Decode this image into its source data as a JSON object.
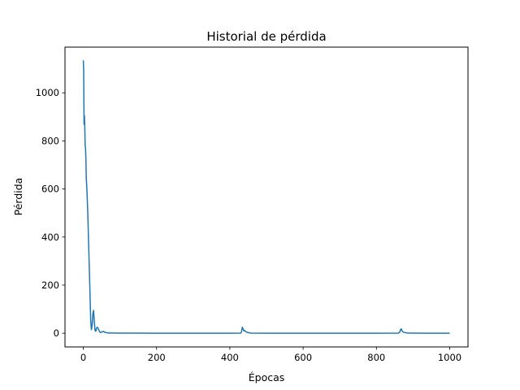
{
  "chart_data": {
    "type": "line",
    "title": "Historial de pérdida",
    "xlabel": "Épocas",
    "ylabel": "Pérdida",
    "xlim": [
      -50,
      1050
    ],
    "ylim": [
      -57,
      1190
    ],
    "xticks": [
      0,
      200,
      400,
      600,
      800,
      1000
    ],
    "yticks": [
      0,
      200,
      400,
      600,
      800,
      1000
    ],
    "grid": false,
    "legend": "none",
    "series": [
      {
        "color": "#1f77b4",
        "x": [
          0,
          1,
          2,
          3,
          4,
          5,
          6,
          7,
          8,
          10,
          12,
          14,
          16,
          18,
          20,
          22,
          24,
          26,
          28,
          30,
          32,
          34,
          36,
          38,
          40,
          42,
          44,
          46,
          48,
          50,
          55,
          60,
          65,
          70,
          80,
          100,
          150,
          200,
          300,
          400,
          430,
          432,
          434,
          436,
          438,
          440,
          442,
          445,
          450,
          455,
          460,
          500,
          600,
          700,
          800,
          860,
          864,
          866,
          868,
          870,
          872,
          875,
          880,
          885,
          890,
          900,
          950,
          1000
        ],
        "y": [
          1135,
          1100,
          870,
          905,
          860,
          780,
          770,
          730,
          650,
          590,
          510,
          400,
          290,
          180,
          60,
          15,
          30,
          80,
          95,
          50,
          12,
          8,
          20,
          25,
          22,
          15,
          8,
          4,
          3,
          5,
          8,
          3,
          2,
          1,
          1,
          0.5,
          0.3,
          0.2,
          0.2,
          0.2,
          0.5,
          8,
          25,
          18,
          10,
          12,
          8,
          5,
          3,
          1,
          0.5,
          0.2,
          0.2,
          0.2,
          0.2,
          0.5,
          5,
          15,
          18,
          10,
          6,
          4,
          2,
          1,
          0.5,
          0.3,
          0.2,
          0.2
        ]
      }
    ]
  }
}
